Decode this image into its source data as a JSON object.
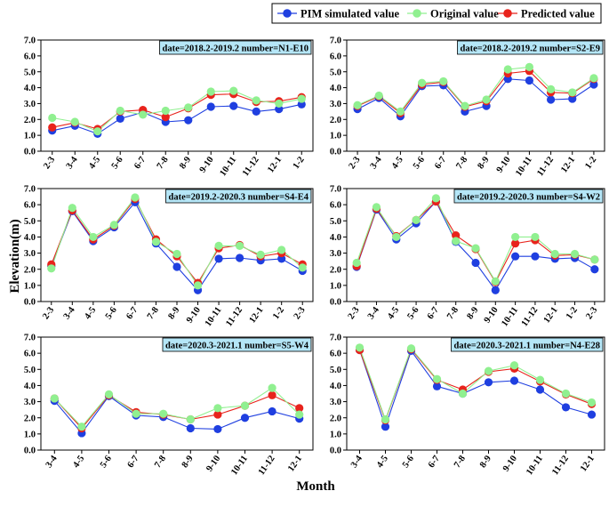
{
  "legend": {
    "pim": "PIM simulated value",
    "original": "Original value",
    "predicted": "Predicted value"
  },
  "axis": {
    "ylabel": "Elevation(m)",
    "xlabel": "Month"
  },
  "colors": {
    "pim": "#1f3fe0",
    "original": "#90f090",
    "predicted": "#e8231c",
    "title_box": "#b5e6f7"
  },
  "chart_data": [
    {
      "type": "line",
      "title": "date=2018.2-2019.2 number=N1-E10",
      "categories": [
        "2-3",
        "3-4",
        "4-5",
        "5-6",
        "6-7",
        "7-8",
        "8-9",
        "9-10",
        "10-11",
        "11-12",
        "12-1",
        "1-2"
      ],
      "ylim": [
        0,
        7
      ],
      "yticks": [
        "0.0",
        "1.0",
        "2.0",
        "3.0",
        "4.0",
        "5.0",
        "6.0",
        "7.0"
      ],
      "series": [
        {
          "name": "PIM simulated value",
          "values": [
            1.3,
            1.6,
            1.1,
            2.05,
            2.45,
            1.85,
            1.95,
            2.8,
            2.85,
            2.5,
            2.65,
            2.95
          ]
        },
        {
          "name": "Original value",
          "values": [
            2.1,
            1.85,
            1.25,
            2.55,
            2.3,
            2.55,
            2.75,
            3.75,
            3.8,
            3.2,
            3.0,
            3.3
          ]
        },
        {
          "name": "Predicted value",
          "values": [
            1.5,
            1.8,
            1.4,
            2.5,
            2.6,
            2.15,
            2.7,
            3.55,
            3.6,
            3.1,
            3.15,
            3.4
          ]
        }
      ]
    },
    {
      "type": "line",
      "title": "date=2018.2-2019.2 number=S2-E9",
      "categories": [
        "2-3",
        "3-4",
        "4-5",
        "5-6",
        "6-7",
        "7-8",
        "8-9",
        "9-10",
        "10-11",
        "11-12",
        "12-1",
        "1-2"
      ],
      "ylim": [
        0,
        7
      ],
      "yticks": [
        "0.0",
        "1.0",
        "2.0",
        "3.0",
        "4.0",
        "5.0",
        "6.0",
        "7.0"
      ],
      "series": [
        {
          "name": "PIM simulated value",
          "values": [
            2.65,
            3.35,
            2.2,
            4.1,
            4.15,
            2.5,
            2.85,
            4.55,
            4.45,
            3.25,
            3.3,
            4.2
          ]
        },
        {
          "name": "Original value",
          "values": [
            2.9,
            3.5,
            2.5,
            4.3,
            4.4,
            2.85,
            3.25,
            5.15,
            5.3,
            3.9,
            3.7,
            4.6
          ]
        },
        {
          "name": "Predicted value",
          "values": [
            2.85,
            3.45,
            2.4,
            4.2,
            4.35,
            2.8,
            3.15,
            4.9,
            5.05,
            3.7,
            3.65,
            4.55
          ]
        }
      ]
    },
    {
      "type": "line",
      "title": "date=2019.2-2020.3 number=S4-E4",
      "categories": [
        "2-3",
        "3-4",
        "4-5",
        "5-6",
        "6-7",
        "7-8",
        "8-9",
        "9-10",
        "10-11",
        "11-12",
        "12-1",
        "1-2",
        "2-3"
      ],
      "ylim": [
        0,
        7
      ],
      "yticks": [
        "0.0",
        "1.0",
        "2.0",
        "3.0",
        "4.0",
        "5.0",
        "6.0",
        "7.0"
      ],
      "series": [
        {
          "name": "PIM simulated value",
          "values": [
            2.2,
            5.6,
            3.75,
            4.6,
            6.15,
            3.6,
            2.15,
            0.7,
            2.65,
            2.7,
            2.55,
            2.65,
            1.9
          ]
        },
        {
          "name": "Original value",
          "values": [
            2.05,
            5.8,
            4.0,
            4.75,
            6.45,
            3.7,
            2.95,
            1.0,
            3.45,
            3.45,
            2.9,
            3.2,
            2.1
          ]
        },
        {
          "name": "Predicted value",
          "values": [
            2.3,
            5.65,
            3.85,
            4.7,
            6.35,
            3.85,
            2.8,
            1.15,
            3.3,
            3.5,
            2.8,
            3.0,
            2.3
          ]
        }
      ]
    },
    {
      "type": "line",
      "title": "date=2019.2-2020.3 number=S4-W2",
      "categories": [
        "2-3",
        "3-4",
        "4-5",
        "5-6",
        "6-7",
        "7-8",
        "8-9",
        "9-10",
        "10-11",
        "11-12",
        "12-1",
        "1-2",
        "2-3"
      ],
      "ylim": [
        0,
        7
      ],
      "yticks": [
        "0.0",
        "1.0",
        "2.0",
        "3.0",
        "4.0",
        "5.0",
        "6.0",
        "7.0"
      ],
      "series": [
        {
          "name": "PIM simulated value",
          "values": [
            2.15,
            5.7,
            3.85,
            4.85,
            6.2,
            3.7,
            2.4,
            0.7,
            2.8,
            2.8,
            2.65,
            2.7,
            2.0
          ]
        },
        {
          "name": "Original value",
          "values": [
            2.4,
            5.85,
            4.0,
            5.05,
            6.4,
            3.75,
            3.3,
            1.25,
            4.0,
            4.0,
            2.95,
            2.95,
            2.6
          ]
        },
        {
          "name": "Predicted value",
          "values": [
            2.2,
            5.75,
            4.05,
            5.05,
            6.2,
            4.1,
            3.25,
            1.2,
            3.6,
            3.8,
            2.85,
            2.9,
            2.6
          ]
        }
      ]
    },
    {
      "type": "line",
      "title": "date=2020.3-2021.1 number=S5-W4",
      "categories": [
        "3-4",
        "4-5",
        "5-6",
        "6-7",
        "7-8",
        "8-9",
        "9-10",
        "10-11",
        "11-12",
        "12-1"
      ],
      "ylim": [
        0,
        7
      ],
      "yticks": [
        "0.0",
        "1.0",
        "2.0",
        "3.0",
        "4.0",
        "5.0",
        "6.0",
        "7.0"
      ],
      "series": [
        {
          "name": "PIM simulated value",
          "values": [
            3.05,
            1.05,
            3.35,
            2.15,
            2.05,
            1.35,
            1.3,
            2.0,
            2.4,
            1.95
          ]
        },
        {
          "name": "Original value",
          "values": [
            3.2,
            1.45,
            3.45,
            2.25,
            2.25,
            1.9,
            2.6,
            2.75,
            3.85,
            2.2
          ]
        },
        {
          "name": "Predicted value",
          "values": [
            3.2,
            1.35,
            3.4,
            2.35,
            2.2,
            1.9,
            2.2,
            2.75,
            3.4,
            2.6
          ]
        }
      ]
    },
    {
      "type": "line",
      "title": "date=2020.3-2021.1 number=N4-E28",
      "categories": [
        "3-4",
        "4-5",
        "5-6",
        "6-7",
        "7-8",
        "8-9",
        "9-10",
        "10-11",
        "11-12",
        "12-1"
      ],
      "ylim": [
        0,
        7
      ],
      "yticks": [
        "0.0",
        "1.0",
        "2.0",
        "3.0",
        "4.0",
        "5.0",
        "6.0",
        "7.0"
      ],
      "series": [
        {
          "name": "PIM simulated value",
          "values": [
            6.2,
            1.45,
            6.15,
            3.95,
            3.5,
            4.2,
            4.3,
            3.75,
            2.65,
            2.2
          ]
        },
        {
          "name": "Original value",
          "values": [
            6.35,
            1.9,
            6.3,
            4.4,
            3.5,
            4.9,
            5.25,
            4.35,
            3.5,
            2.95
          ]
        },
        {
          "name": "Predicted value",
          "values": [
            6.2,
            1.85,
            6.25,
            4.35,
            3.75,
            4.85,
            5.05,
            4.25,
            3.45,
            2.85
          ]
        }
      ]
    }
  ]
}
